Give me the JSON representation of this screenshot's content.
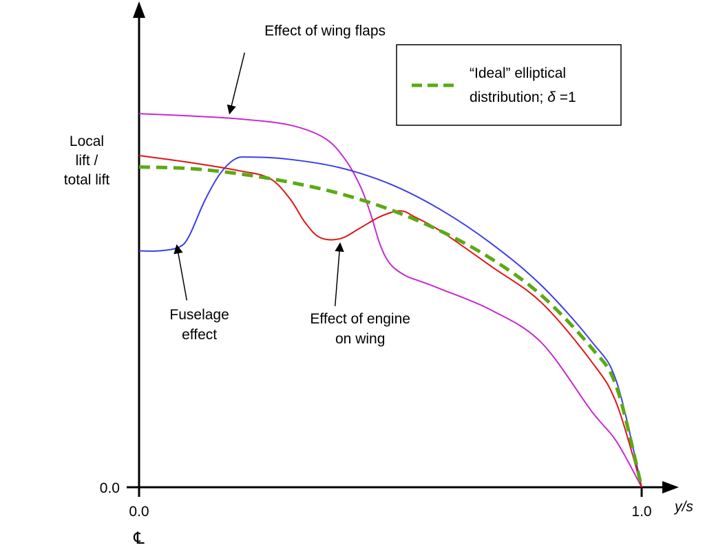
{
  "chart_data": {
    "type": "line",
    "xlabel": "y/s",
    "ylabel_lines": [
      "Local",
      "lift /",
      "total lift"
    ],
    "x_ticks": [
      "0.0",
      "1.0"
    ],
    "y_ticks": [
      "0.0"
    ],
    "centerline_symbol": "℄",
    "xlim": [
      0,
      1
    ],
    "ylim": [
      0,
      1
    ],
    "grid": false,
    "legend": {
      "placement": "top-right",
      "line1": "“Ideal” elliptical",
      "line2_prefix": "distribution; ",
      "line2_symbol": "δ",
      "line2_suffix": " =1"
    },
    "series": [
      {
        "key": "elliptical",
        "color": "#5aaa14",
        "dashed": true,
        "x": [
          0,
          0.1,
          0.2,
          0.3,
          0.4,
          0.5,
          0.6,
          0.7,
          0.8,
          0.9,
          0.95,
          1.0
        ],
        "y": [
          0.84,
          0.836,
          0.822,
          0.8,
          0.77,
          0.728,
          0.672,
          0.6,
          0.504,
          0.366,
          0.263,
          0.0
        ]
      },
      {
        "key": "fuselage",
        "color": "#3c3cf0",
        "dashed": false,
        "x": [
          0,
          0.04,
          0.08,
          0.1,
          0.13,
          0.16,
          0.19,
          0.22,
          0.3,
          0.4,
          0.5,
          0.6,
          0.7,
          0.8,
          0.9,
          0.95,
          1.0
        ],
        "y": [
          0.62,
          0.62,
          0.63,
          0.66,
          0.75,
          0.82,
          0.86,
          0.866,
          0.86,
          0.838,
          0.795,
          0.728,
          0.64,
          0.53,
          0.383,
          0.277,
          0.0
        ]
      },
      {
        "key": "engine",
        "color": "#e01414",
        "dashed": false,
        "x": [
          0,
          0.1,
          0.2,
          0.26,
          0.3,
          0.33,
          0.36,
          0.4,
          0.44,
          0.48,
          0.52,
          0.55,
          0.6,
          0.7,
          0.8,
          0.9,
          0.95,
          1.0
        ],
        "y": [
          0.87,
          0.852,
          0.83,
          0.81,
          0.757,
          0.695,
          0.655,
          0.652,
          0.68,
          0.71,
          0.725,
          0.708,
          0.672,
          0.58,
          0.485,
          0.33,
          0.22,
          0.0
        ]
      },
      {
        "key": "flaps",
        "color": "#c828d2",
        "dashed": false,
        "x": [
          0,
          0.1,
          0.2,
          0.3,
          0.37,
          0.41,
          0.44,
          0.46,
          0.48,
          0.5,
          0.53,
          0.56,
          0.6,
          0.7,
          0.8,
          0.9,
          0.95,
          1.0
        ],
        "y": [
          0.98,
          0.974,
          0.966,
          0.95,
          0.915,
          0.86,
          0.79,
          0.72,
          0.635,
          0.585,
          0.555,
          0.54,
          0.52,
          0.465,
          0.38,
          0.2,
          0.12,
          0.0
        ]
      }
    ],
    "annotations": [
      {
        "key": "flaps_label",
        "lines": [
          "Effect of wing flaps"
        ],
        "anchor": "middle",
        "tx": 0.37,
        "ty": 1.185,
        "arrow_from": [
          0.21,
          1.14
        ],
        "arrow_to": [
          0.18,
          0.98
        ]
      },
      {
        "key": "fuselage_label",
        "lines": [
          "Fuselage",
          "effect"
        ],
        "anchor": "middle",
        "tx": 0.12,
        "ty": 0.44,
        "arrow_from": [
          0.095,
          0.49
        ],
        "arrow_to": [
          0.075,
          0.635
        ]
      },
      {
        "key": "engine_label",
        "lines": [
          "Effect of engine",
          "on wing"
        ],
        "anchor": "middle",
        "tx": 0.44,
        "ty": 0.43,
        "arrow_from": [
          0.39,
          0.475
        ],
        "arrow_to": [
          0.4,
          0.64
        ]
      }
    ]
  }
}
